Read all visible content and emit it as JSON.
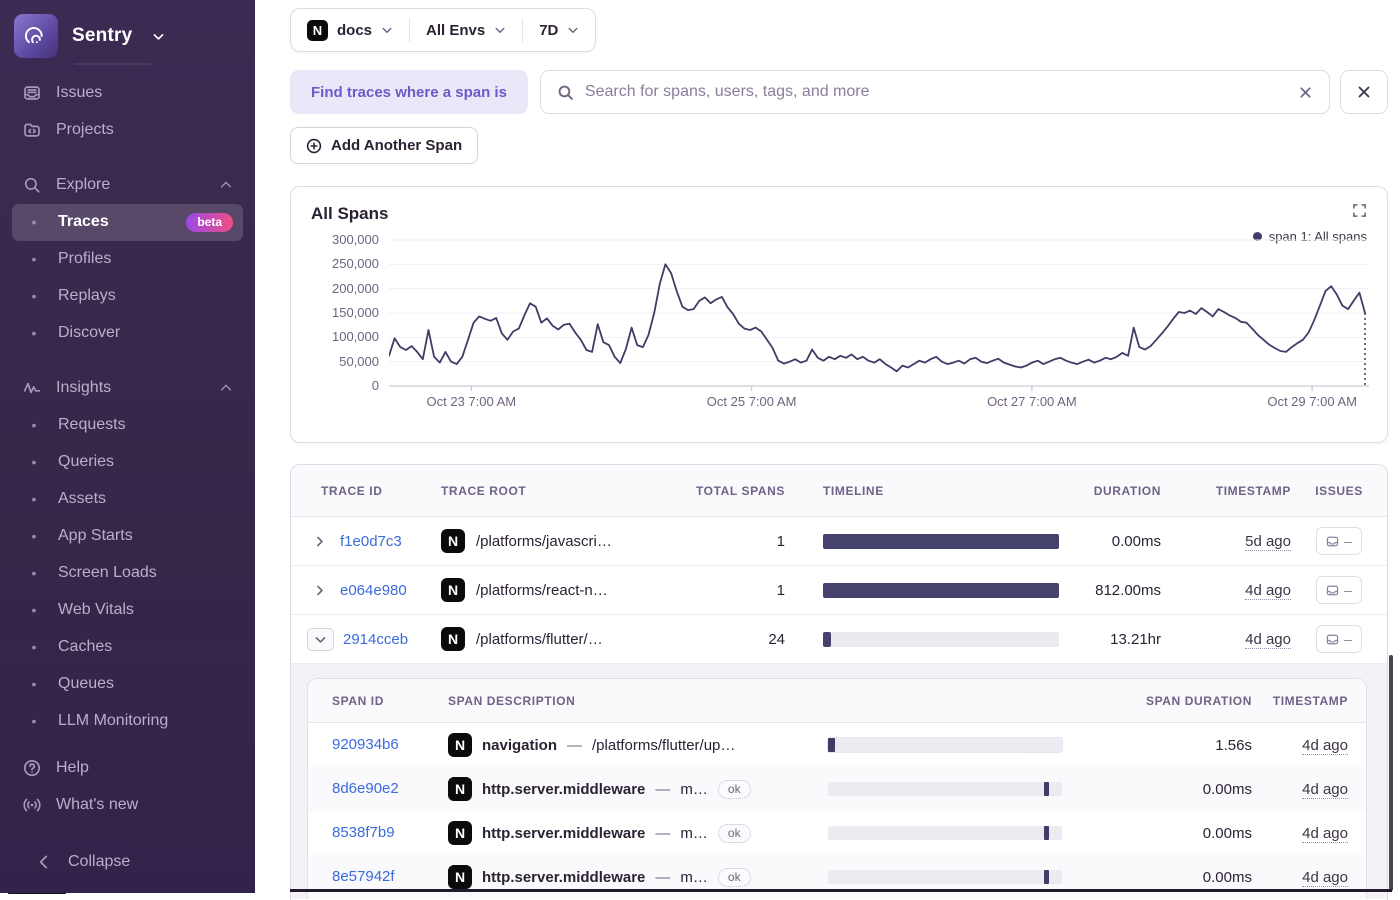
{
  "sidebar": {
    "brand": "Sentry",
    "items": [
      {
        "label": "Issues",
        "type": "top",
        "icon": "issues"
      },
      {
        "label": "Projects",
        "type": "top",
        "icon": "projects"
      },
      {
        "label": "Explore",
        "type": "section",
        "icon": "search",
        "chevron": "up"
      },
      {
        "label": "Traces",
        "type": "sub",
        "active": true,
        "badge": "beta"
      },
      {
        "label": "Profiles",
        "type": "sub"
      },
      {
        "label": "Replays",
        "type": "sub"
      },
      {
        "label": "Discover",
        "type": "sub"
      },
      {
        "label": "Insights",
        "type": "section",
        "icon": "insights",
        "chevron": "up"
      },
      {
        "label": "Requests",
        "type": "sub"
      },
      {
        "label": "Queries",
        "type": "sub"
      },
      {
        "label": "Assets",
        "type": "sub"
      },
      {
        "label": "App Starts",
        "type": "sub"
      },
      {
        "label": "Screen Loads",
        "type": "sub"
      },
      {
        "label": "Web Vitals",
        "type": "sub"
      },
      {
        "label": "Caches",
        "type": "sub"
      },
      {
        "label": "Queues",
        "type": "sub"
      },
      {
        "label": "LLM Monitoring",
        "type": "sub"
      }
    ],
    "footer": [
      {
        "label": "Help",
        "icon": "help"
      },
      {
        "label": "What's new",
        "icon": "megaphone"
      }
    ],
    "collapse_label": "Collapse"
  },
  "filters": {
    "project_icon": "N",
    "project": "docs",
    "environment": "All Envs",
    "period": "7D"
  },
  "search": {
    "prefix_label": "Find traces where a span is",
    "placeholder": "Search for spans, users, tags, and more"
  },
  "add_span_label": "Add Another Span",
  "chart": {
    "title": "All Spans",
    "legend": "span 1: All spans"
  },
  "chart_data": {
    "type": "line",
    "title": "All Spans",
    "legend": [
      {
        "name": "span 1: All spans",
        "color": "#3F3D66"
      }
    ],
    "legend_position": "top-right",
    "grid": "horizontal",
    "ylim": [
      0,
      300000
    ],
    "y_ticks": [
      0,
      50000,
      100000,
      150000,
      200000,
      250000,
      300000
    ],
    "y_tick_labels": [
      "0",
      "50,000",
      "100,000",
      "150,000",
      "200,000",
      "250,000",
      "300,000"
    ],
    "x_ticks": [
      {
        "label": "Oct 23 7:00 AM",
        "pos": 0.084
      },
      {
        "label": "Oct 25 7:00 AM",
        "pos": 0.37
      },
      {
        "label": "Oct 27 7:00 AM",
        "pos": 0.656
      },
      {
        "label": "Oct 29 7:00 AM",
        "pos": 0.942
      }
    ],
    "series": [
      {
        "name": "span 1: All spans",
        "values": [
          62000,
          98000,
          80000,
          74000,
          82000,
          70000,
          55000,
          115000,
          60000,
          48000,
          70000,
          50000,
          45000,
          60000,
          95000,
          130000,
          143000,
          138000,
          134000,
          140000,
          108000,
          95000,
          112000,
          118000,
          145000,
          170000,
          163000,
          130000,
          139000,
          124000,
          116000,
          126000,
          128000,
          110000,
          95000,
          74000,
          70000,
          127000,
          90000,
          84000,
          60000,
          47000,
          76000,
          120000,
          84000,
          80000,
          105000,
          150000,
          210000,
          250000,
          232000,
          195000,
          163000,
          156000,
          158000,
          175000,
          182000,
          170000,
          178000,
          183000,
          162000,
          148000,
          128000,
          118000,
          115000,
          120000,
          112000,
          95000,
          78000,
          52000,
          46000,
          50000,
          55000,
          48000,
          52000,
          75000,
          58000,
          52000,
          60000,
          55000,
          62000,
          58000,
          65000,
          55000,
          60000,
          52000,
          48000,
          55000,
          45000,
          38000,
          30000,
          42000,
          38000,
          45000,
          52000,
          48000,
          55000,
          60000,
          50000,
          45000,
          48000,
          52000,
          46000,
          55000,
          58000,
          50000,
          47000,
          52000,
          56000,
          48000,
          44000,
          40000,
          38000,
          42000,
          48000,
          52000,
          45000,
          50000,
          55000,
          58000,
          52000,
          48000,
          45000,
          50000,
          54000,
          48000,
          52000,
          58000,
          55000,
          60000,
          68000,
          62000,
          120000,
          80000,
          75000,
          82000,
          95000,
          108000,
          122000,
          138000,
          152000,
          150000,
          155000,
          148000,
          160000,
          152000,
          143000,
          158000,
          152000,
          145000,
          140000,
          132000,
          130000,
          118000,
          105000,
          95000,
          85000,
          78000,
          72000,
          70000,
          80000,
          88000,
          95000,
          110000,
          135000,
          165000,
          195000,
          205000,
          188000,
          165000,
          158000,
          175000,
          192000,
          150000
        ]
      }
    ]
  },
  "trace_table": {
    "columns": [
      "TRACE ID",
      "TRACE ROOT",
      "TOTAL SPANS",
      "TIMELINE",
      "DURATION",
      "TIMESTAMP",
      "ISSUES"
    ],
    "rows": [
      {
        "trace_id": "f1e0d7c3",
        "root": "/platforms/javascri…",
        "total_spans": "1",
        "timeline": {
          "track": false,
          "left_pct": 0,
          "width_pct": 100
        },
        "duration": "0.00ms",
        "timestamp": "5d ago",
        "issues": "–",
        "expanded": false
      },
      {
        "trace_id": "e064e980",
        "root": "/platforms/react-n…",
        "total_spans": "1",
        "timeline": {
          "track": false,
          "left_pct": 0,
          "width_pct": 100
        },
        "duration": "812.00ms",
        "timestamp": "4d ago",
        "issues": "–",
        "expanded": false
      },
      {
        "trace_id": "2914cceb",
        "root": "/platforms/flutter/…",
        "total_spans": "24",
        "timeline": {
          "track": true,
          "left_pct": 0,
          "width_pct": 3.6
        },
        "duration": "13.21hr",
        "timestamp": "4d ago",
        "issues": "–",
        "expanded": true
      }
    ]
  },
  "span_table": {
    "columns": [
      "SPAN ID",
      "SPAN DESCRIPTION",
      "SPAN DURATION",
      "TIMESTAMP"
    ],
    "rows": [
      {
        "span_id": "920934b6",
        "op": "navigation",
        "description": "/platforms/flutter/up…",
        "status": null,
        "timeline": {
          "left_pct": 0,
          "width_pct": 3,
          "dotted": true
        },
        "duration": "1.56s",
        "timestamp": "4d ago"
      },
      {
        "span_id": "8d6e90e2",
        "op": "http.server.middleware",
        "description": "m…",
        "status": "ok",
        "timeline": {
          "left_pct": 92.5,
          "width_pct": 2,
          "dotted": false
        },
        "duration": "0.00ms",
        "timestamp": "4d ago"
      },
      {
        "span_id": "8538f7b9",
        "op": "http.server.middleware",
        "description": "m…",
        "status": "ok",
        "timeline": {
          "left_pct": 92.5,
          "width_pct": 2,
          "dotted": false
        },
        "duration": "0.00ms",
        "timestamp": "4d ago"
      },
      {
        "span_id": "8e57942f",
        "op": "http.server.middleware",
        "description": "m…",
        "status": "ok",
        "timeline": {
          "left_pct": 92.5,
          "width_pct": 2,
          "dotted": false
        },
        "duration": "0.00ms",
        "timestamp": "4d ago"
      }
    ]
  }
}
